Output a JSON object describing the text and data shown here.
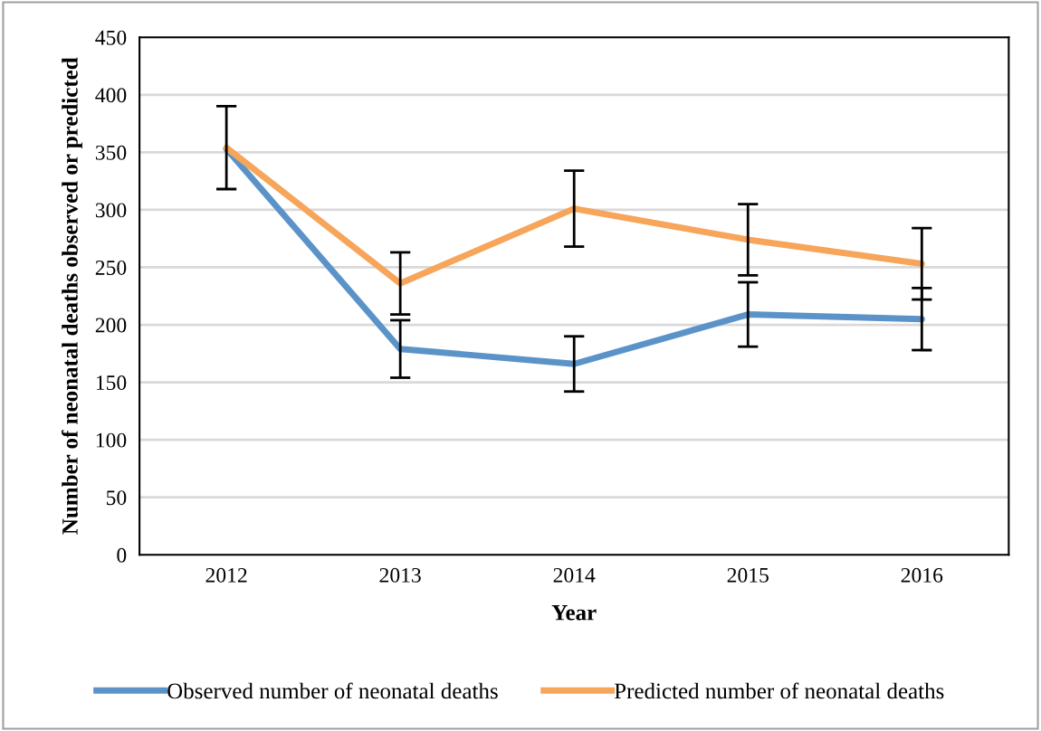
{
  "chart_data": {
    "type": "line",
    "xlabel": "Year",
    "ylabel": "Number of neonatal deaths observed or predicted",
    "categories": [
      "2012",
      "2013",
      "2014",
      "2015",
      "2016"
    ],
    "series": [
      {
        "name": "Observed number of neonatal deaths",
        "color": "#5b93c9",
        "values": [
          353,
          179,
          166,
          209,
          205
        ],
        "errors": [
          null,
          25,
          24,
          28,
          27
        ]
      },
      {
        "name": "Predicted number of neonatal deaths",
        "color": "#f6a55a",
        "values": [
          354,
          236,
          301,
          274,
          253
        ],
        "errors": [
          36,
          27,
          33,
          31,
          31
        ]
      }
    ],
    "ylim": [
      0,
      450
    ],
    "yticks": [
      0,
      50,
      100,
      150,
      200,
      250,
      300,
      350,
      400,
      450
    ],
    "grid": "y",
    "legend": "bottom",
    "marker": "none",
    "line_style": "solid"
  }
}
